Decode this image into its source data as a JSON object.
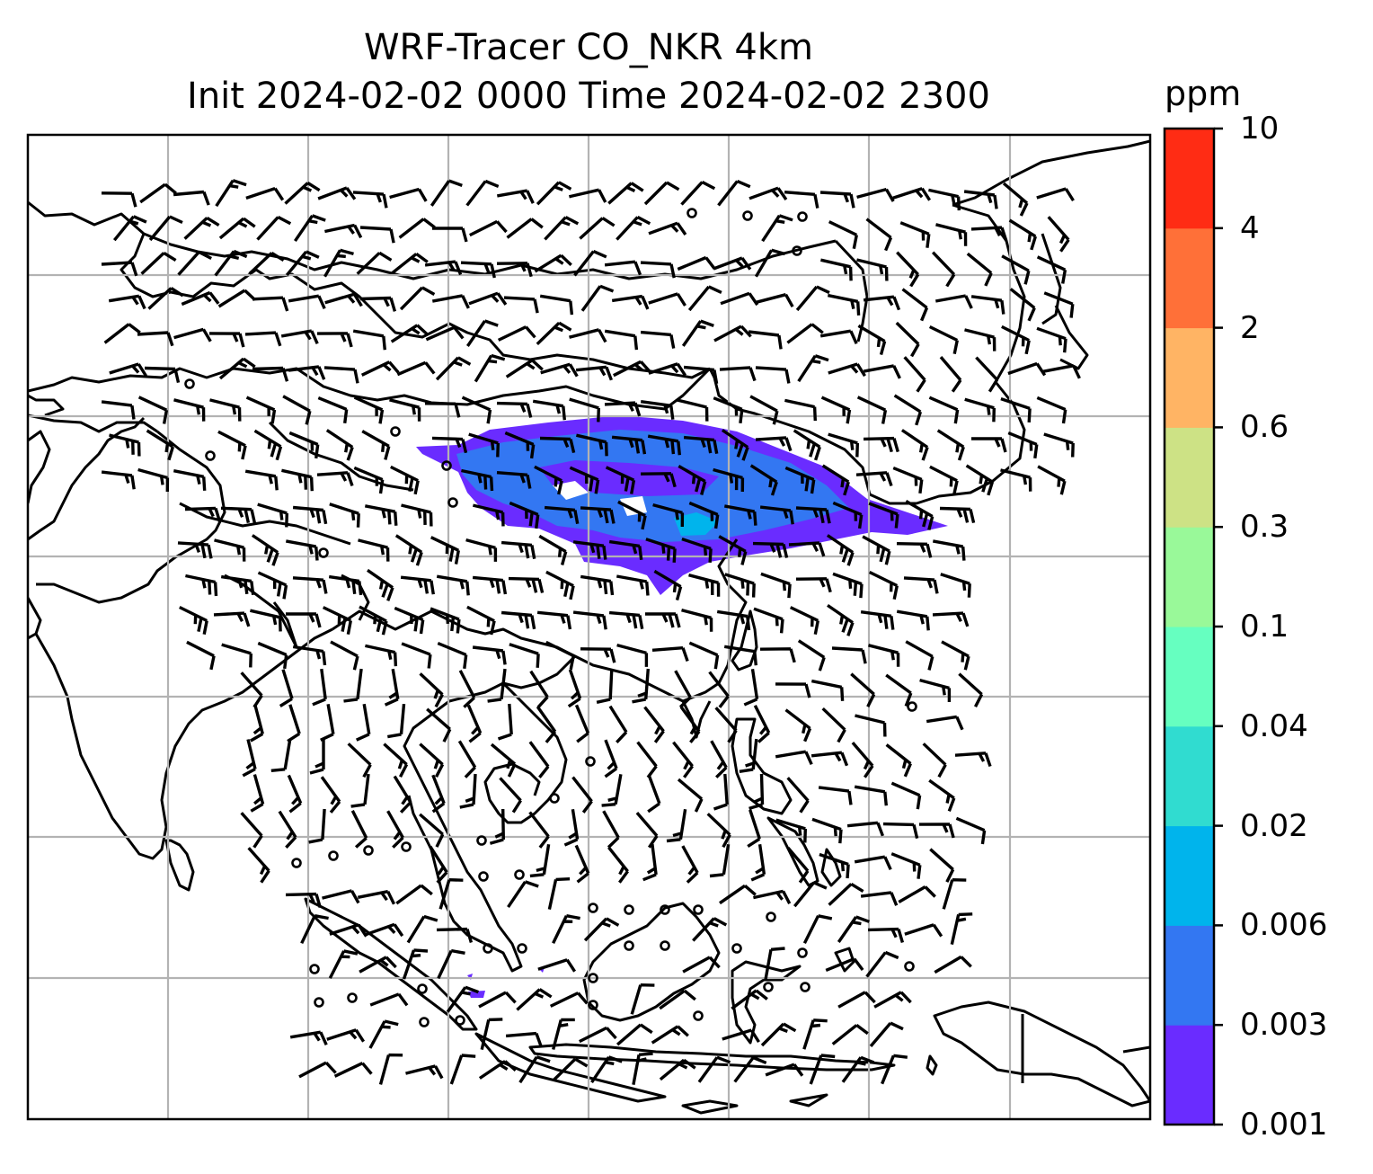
{
  "title": {
    "line1": "WRF-Tracer CO_NKR 4km",
    "line2": "Init 2024-02-02 0000 Time 2024-02-02 2300"
  },
  "colorbar": {
    "unit": "ppm",
    "levels": [
      "0.001",
      "0.003",
      "0.006",
      "0.02",
      "0.04",
      "0.1",
      "0.3",
      "0.6",
      "2",
      "4",
      "10"
    ],
    "colors": [
      "#6a2cff",
      "#3377f2",
      "#00b4ec",
      "#30dcd0",
      "#66ffc0",
      "#99f999",
      "#cde285",
      "#ffb464",
      "#ff7038",
      "#ff2c14"
    ]
  },
  "map": {
    "plume_colors": [
      "#6a2cff",
      "#3377f2",
      "#00b4ec"
    ],
    "gridlines": true
  }
}
